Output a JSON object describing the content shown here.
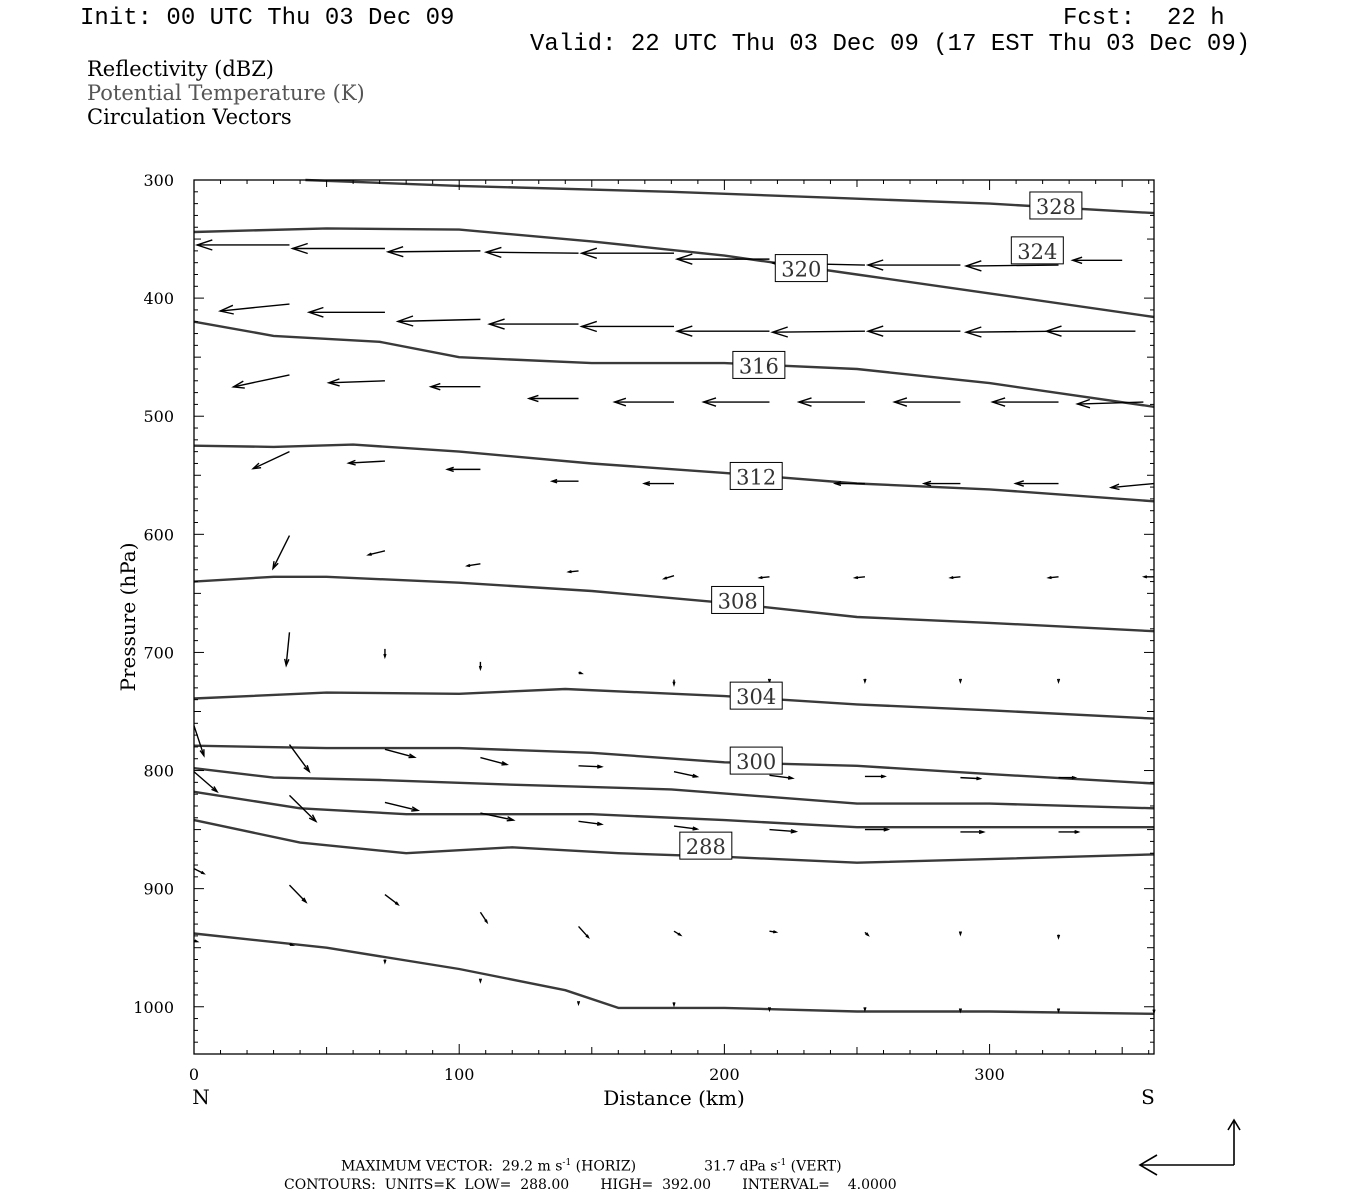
{
  "header": {
    "init": "Init: 00 UTC Thu 03 Dec 09",
    "fcst_label": "Fcst:",
    "fcst_value": "22 h",
    "valid": "Valid: 22 UTC Thu 03 Dec 09 (17 EST Thu 03 Dec 09)"
  },
  "legend": {
    "line1": "Reflectivity (dBZ)",
    "line2": "Potential Temperature (K)",
    "line3": "Circulation Vectors"
  },
  "footer": {
    "max_vector": "MAXIMUM VECTOR:  29.2 m s",
    "horiz_tag": " (HORIZ)",
    "vert_val": "31.7 dPa s",
    "vert_tag": " (VERT)",
    "exp": "-1",
    "contours": "CONTOURS:  UNITS=K  LOW=  288.00       HIGH=  392.00       INTERVAL=    4.0000"
  },
  "chart_data": {
    "type": "line",
    "xlabel": "Distance (km)",
    "ylabel": "Pressure (hPa)",
    "xlim": [
      0,
      362
    ],
    "ylim": [
      1040,
      300
    ],
    "y_scale": "linear-inverted",
    "x_ticks": [
      0,
      100,
      200,
      300
    ],
    "y_ticks": [
      300,
      400,
      500,
      600,
      700,
      800,
      900,
      1000
    ],
    "x_end_labels": {
      "left": "N",
      "right": "S"
    },
    "contour_labels": [
      {
        "text": "328",
        "x": 325,
        "y": 322
      },
      {
        "text": "324",
        "x": 318,
        "y": 360
      },
      {
        "text": "320",
        "x": 229,
        "y": 375
      },
      {
        "text": "316",
        "x": 213,
        "y": 457
      },
      {
        "text": "312",
        "x": 212,
        "y": 551
      },
      {
        "text": "308",
        "x": 205,
        "y": 656
      },
      {
        "text": "304",
        "x": 212,
        "y": 737
      },
      {
        "text": "300",
        "x": 212,
        "y": 792
      },
      {
        "text": "288",
        "x": 193,
        "y": 864
      }
    ],
    "series": [
      {
        "x": [
          42,
          100,
          180,
          240,
          300,
          362
        ],
        "values": [
          300,
          305,
          310,
          315,
          320,
          328
        ]
      },
      {
        "x": [
          0,
          50,
          100,
          150,
          200,
          250,
          300,
          362
        ],
        "values": [
          344,
          341,
          342,
          352,
          364,
          380,
          396,
          416
        ]
      },
      {
        "x": [
          0,
          30,
          70,
          100,
          150,
          200,
          250,
          300,
          362
        ],
        "values": [
          420,
          432,
          437,
          450,
          455,
          455,
          460,
          472,
          492
        ]
      },
      {
        "x": [
          0,
          30,
          60,
          100,
          150,
          200,
          250,
          300,
          362
        ],
        "values": [
          525,
          526,
          524,
          530,
          540,
          548,
          557,
          562,
          572
        ]
      },
      {
        "x": [
          0,
          30,
          50,
          100,
          150,
          200,
          250,
          300,
          362
        ],
        "values": [
          640,
          636,
          636,
          641,
          648,
          658,
          670,
          675,
          682
        ]
      },
      {
        "x": [
          0,
          50,
          100,
          140,
          200,
          250,
          300,
          362
        ],
        "values": [
          739,
          734,
          735,
          731,
          737,
          744,
          749,
          756
        ]
      },
      {
        "x": [
          0,
          50,
          100,
          150,
          200,
          250,
          300,
          362
        ],
        "values": [
          779,
          781,
          781,
          785,
          793,
          796,
          803,
          811
        ]
      },
      {
        "x": [
          0,
          30,
          70,
          120,
          180,
          250,
          300,
          362
        ],
        "values": [
          798,
          806,
          808,
          812,
          816,
          828,
          828,
          832
        ]
      },
      {
        "x": [
          0,
          40,
          80,
          150,
          200,
          250,
          300,
          362
        ],
        "values": [
          818,
          832,
          837,
          837,
          842,
          848,
          848,
          848
        ]
      },
      {
        "x": [
          0,
          40,
          80,
          120,
          160,
          200,
          250,
          300,
          362
        ],
        "values": [
          842,
          861,
          870,
          865,
          870,
          873,
          878,
          875,
          871
        ]
      },
      {
        "x": [
          0,
          50,
          100,
          140,
          160,
          200,
          250,
          300,
          362
        ],
        "values": [
          938,
          950,
          968,
          986,
          1001,
          1001,
          1004,
          1004,
          1006
        ]
      }
    ],
    "vectors": [
      {
        "x": 36,
        "y": 355,
        "u": -28,
        "v": 0
      },
      {
        "x": 72,
        "y": 358,
        "u": -28,
        "v": 0
      },
      {
        "x": 108,
        "y": 360,
        "u": -28,
        "v": 1
      },
      {
        "x": 145,
        "y": 362,
        "u": -28,
        "v": -1
      },
      {
        "x": 181,
        "y": 362,
        "u": -28,
        "v": 0
      },
      {
        "x": 217,
        "y": 367,
        "u": -28,
        "v": 0
      },
      {
        "x": 253,
        "y": 372,
        "u": -28,
        "v": -2
      },
      {
        "x": 289,
        "y": 372,
        "u": -28,
        "v": 0
      },
      {
        "x": 326,
        "y": 372,
        "u": -28,
        "v": 1
      },
      {
        "x": 350,
        "y": 368,
        "u": -15,
        "v": 0
      },
      {
        "x": 36,
        "y": 405,
        "u": -21,
        "v": 7
      },
      {
        "x": 72,
        "y": 412,
        "u": -23,
        "v": 0
      },
      {
        "x": 108,
        "y": 418,
        "u": -25,
        "v": 2
      },
      {
        "x": 145,
        "y": 422,
        "u": -27,
        "v": 0
      },
      {
        "x": 181,
        "y": 424,
        "u": -28,
        "v": 0
      },
      {
        "x": 217,
        "y": 428,
        "u": -28,
        "v": 0
      },
      {
        "x": 253,
        "y": 428,
        "u": -28,
        "v": 1
      },
      {
        "x": 289,
        "y": 428,
        "u": -28,
        "v": 0
      },
      {
        "x": 326,
        "y": 428,
        "u": -28,
        "v": 1
      },
      {
        "x": 355,
        "y": 428,
        "u": -27,
        "v": 0
      },
      {
        "x": 36,
        "y": 465,
        "u": -17,
        "v": 12
      },
      {
        "x": 72,
        "y": 470,
        "u": -17,
        "v": 2
      },
      {
        "x": 108,
        "y": 475,
        "u": -15,
        "v": 0
      },
      {
        "x": 145,
        "y": 485,
        "u": -15,
        "v": 0
      },
      {
        "x": 181,
        "y": 488,
        "u": -18,
        "v": 0
      },
      {
        "x": 217,
        "y": 488,
        "u": -20,
        "v": 0
      },
      {
        "x": 253,
        "y": 488,
        "u": -20,
        "v": 0
      },
      {
        "x": 289,
        "y": 488,
        "u": -20,
        "v": 0
      },
      {
        "x": 326,
        "y": 488,
        "u": -20,
        "v": 0
      },
      {
        "x": 358,
        "y": 488,
        "u": -20,
        "v": 2
      },
      {
        "x": 36,
        "y": 530,
        "u": -11,
        "v": 17
      },
      {
        "x": 72,
        "y": 538,
        "u": -11,
        "v": 2
      },
      {
        "x": 108,
        "y": 545,
        "u": -10,
        "v": 0
      },
      {
        "x": 145,
        "y": 555,
        "u": -8,
        "v": 0
      },
      {
        "x": 181,
        "y": 557,
        "u": -9,
        "v": 0
      },
      {
        "x": 217,
        "y": 557,
        "u": -9,
        "v": 0
      },
      {
        "x": 253,
        "y": 557,
        "u": -9,
        "v": 0
      },
      {
        "x": 289,
        "y": 557,
        "u": -11,
        "v": 0
      },
      {
        "x": 326,
        "y": 557,
        "u": -13,
        "v": 0
      },
      {
        "x": 362,
        "y": 557,
        "u": -13,
        "v": 4
      },
      {
        "x": 36,
        "y": 601,
        "u": -5,
        "v": 33
      },
      {
        "x": 72,
        "y": 614,
        "u": -5,
        "v": 4
      },
      {
        "x": 108,
        "y": 625,
        "u": -4,
        "v": 2
      },
      {
        "x": 145,
        "y": 631,
        "u": -3,
        "v": 1
      },
      {
        "x": 181,
        "y": 635,
        "u": -3,
        "v": 3
      },
      {
        "x": 217,
        "y": 636,
        "u": -3,
        "v": 1
      },
      {
        "x": 253,
        "y": 636,
        "u": -3,
        "v": 1
      },
      {
        "x": 289,
        "y": 636,
        "u": -3,
        "v": 1
      },
      {
        "x": 326,
        "y": 636,
        "u": -3,
        "v": 1
      },
      {
        "x": 362,
        "y": 636,
        "u": -3,
        "v": 0
      },
      {
        "x": 36,
        "y": 683,
        "u": -1,
        "v": 33
      },
      {
        "x": 72,
        "y": 697,
        "u": 0,
        "v": 8
      },
      {
        "x": 108,
        "y": 708,
        "u": 0,
        "v": 7
      },
      {
        "x": 145,
        "y": 717,
        "u": 1,
        "v": 1
      },
      {
        "x": 181,
        "y": 723,
        "u": 0,
        "v": 5
      },
      {
        "x": 217,
        "y": 724,
        "u": 0,
        "v": 1
      },
      {
        "x": 253,
        "y": 724,
        "u": 0,
        "v": 1
      },
      {
        "x": 289,
        "y": 724,
        "u": 0,
        "v": 1
      },
      {
        "x": 326,
        "y": 724,
        "u": 0,
        "v": 1
      },
      {
        "x": 0,
        "y": 762,
        "u": 3,
        "v": 30
      },
      {
        "x": 36,
        "y": 778,
        "u": 6,
        "v": 27
      },
      {
        "x": 72,
        "y": 782,
        "u": 9,
        "v": 8
      },
      {
        "x": 108,
        "y": 789,
        "u": 8,
        "v": 7
      },
      {
        "x": 145,
        "y": 796,
        "u": 7,
        "v": 1
      },
      {
        "x": 181,
        "y": 801,
        "u": 7,
        "v": 5
      },
      {
        "x": 217,
        "y": 804,
        "u": 7,
        "v": 3
      },
      {
        "x": 253,
        "y": 805,
        "u": 6,
        "v": 0
      },
      {
        "x": 289,
        "y": 806,
        "u": 6,
        "v": 1
      },
      {
        "x": 326,
        "y": 806,
        "u": 5,
        "v": 0
      },
      {
        "x": 0,
        "y": 801,
        "u": 7,
        "v": 20
      },
      {
        "x": 36,
        "y": 821,
        "u": 8,
        "v": 26
      },
      {
        "x": 72,
        "y": 827,
        "u": 10,
        "v": 8
      },
      {
        "x": 108,
        "y": 836,
        "u": 10,
        "v": 7
      },
      {
        "x": 145,
        "y": 843,
        "u": 7,
        "v": 3
      },
      {
        "x": 181,
        "y": 847,
        "u": 7,
        "v": 3
      },
      {
        "x": 217,
        "y": 850,
        "u": 8,
        "v": 2
      },
      {
        "x": 253,
        "y": 850,
        "u": 7,
        "v": 0
      },
      {
        "x": 289,
        "y": 852,
        "u": 7,
        "v": 0
      },
      {
        "x": 326,
        "y": 852,
        "u": 6,
        "v": 0
      },
      {
        "x": 0,
        "y": 883,
        "u": 3,
        "v": 5
      },
      {
        "x": 36,
        "y": 897,
        "u": 5,
        "v": 17
      },
      {
        "x": 72,
        "y": 905,
        "u": 4,
        "v": 10
      },
      {
        "x": 108,
        "y": 920,
        "u": 2,
        "v": 10
      },
      {
        "x": 145,
        "y": 932,
        "u": 3,
        "v": 11
      },
      {
        "x": 181,
        "y": 936,
        "u": 2,
        "v": 4
      },
      {
        "x": 217,
        "y": 936,
        "u": 2,
        "v": 1
      },
      {
        "x": 253,
        "y": 937,
        "u": 1,
        "v": 3
      },
      {
        "x": 289,
        "y": 937,
        "u": 0,
        "v": 2
      },
      {
        "x": 326,
        "y": 939,
        "u": 0,
        "v": 3
      },
      {
        "x": 0,
        "y": 944,
        "u": 1,
        "v": 1
      },
      {
        "x": 36,
        "y": 947,
        "u": 1,
        "v": 1
      },
      {
        "x": 72,
        "y": 960,
        "u": 0,
        "v": 3
      },
      {
        "x": 108,
        "y": 977,
        "u": 0,
        "v": 2
      },
      {
        "x": 145,
        "y": 996,
        "u": 0,
        "v": 2
      },
      {
        "x": 181,
        "y": 997,
        "u": 0,
        "v": 2
      },
      {
        "x": 217,
        "y": 1002,
        "u": 0,
        "v": 1
      },
      {
        "x": 253,
        "y": 1002,
        "u": 0,
        "v": 1
      },
      {
        "x": 289,
        "y": 1003,
        "u": 0,
        "v": 1
      },
      {
        "x": 326,
        "y": 1003,
        "u": 0,
        "v": 1
      },
      {
        "x": 362,
        "y": 1004,
        "u": 0,
        "v": 1
      }
    ],
    "reference_vector": {
      "u": -29.2,
      "v": 31.7
    }
  }
}
